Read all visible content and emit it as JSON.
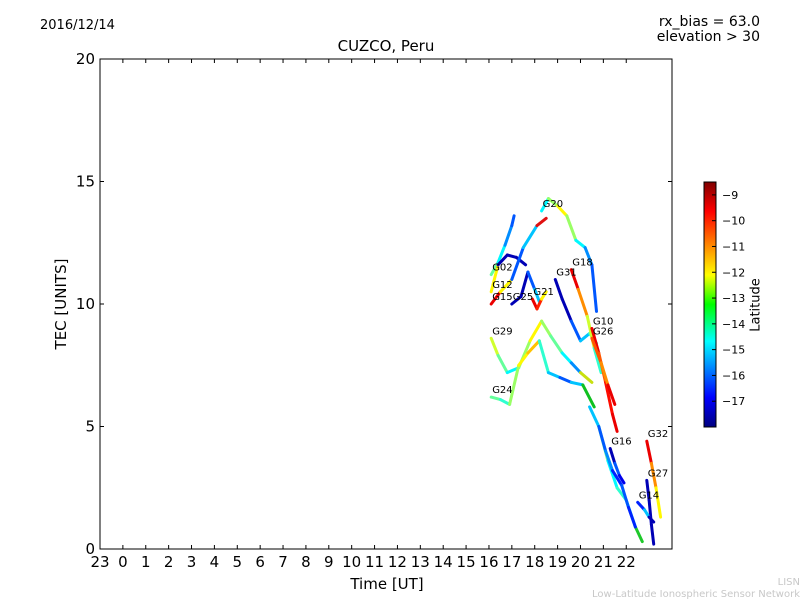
{
  "header": {
    "date": "2016/12/14",
    "rx_bias": "rx_bias = 63.0",
    "elevation": "elevation > 30"
  },
  "footer": {
    "org_short": "LISN",
    "org_long": "Low-Latitude Ionospheric Sensor Network"
  },
  "chart_data": {
    "type": "line",
    "title": "CUZCO, Peru",
    "xlabel": "Time [UT]",
    "ylabel": "TEC [UNITS]",
    "xlim": [
      -1,
      24
    ],
    "ylim": [
      0,
      20
    ],
    "xticks": [
      -1,
      0,
      1,
      2,
      3,
      4,
      5,
      6,
      7,
      8,
      9,
      10,
      11,
      12,
      13,
      14,
      15,
      16,
      17,
      18,
      19,
      20,
      21,
      22
    ],
    "xtick_labels": [
      "23",
      "0",
      "1",
      "2",
      "3",
      "4",
      "5",
      "6",
      "7",
      "8",
      "9",
      "10",
      "11",
      "12",
      "13",
      "14",
      "15",
      "16",
      "17",
      "18",
      "19",
      "20",
      "21",
      "22"
    ],
    "yticks": [
      0,
      5,
      10,
      15,
      20
    ],
    "ytick_labels": [
      "0",
      "5",
      "10",
      "15",
      "20"
    ],
    "grid": false,
    "colorbar": {
      "label": "Latitude",
      "range": [
        -18,
        -8.5
      ],
      "ticks": [
        -9,
        -10,
        -11,
        -12,
        -13,
        -14,
        -15,
        -16,
        -17
      ],
      "tick_labels": [
        "−9",
        "−10",
        "−11",
        "−12",
        "−13",
        "−14",
        "−15",
        "−16",
        "−17"
      ],
      "colormap": "jet"
    },
    "series": [
      {
        "name": "G02",
        "color": "#1ec82a",
        "lat": [
          -13.5,
          -14.5,
          -15.5,
          -16
        ],
        "x": [
          16.1,
          16.4,
          16.7,
          17.0,
          17.1
        ],
        "y": [
          11.2,
          11.7,
          12.4,
          13.2,
          13.6
        ]
      },
      {
        "name": "G12",
        "color": "#0018d8",
        "lat": [
          -12,
          -17.5,
          -17.5,
          -17.5
        ],
        "x": [
          16.1,
          16.4,
          16.8,
          17.2,
          17.6
        ],
        "y": [
          10.5,
          11.6,
          12.0,
          11.9,
          11.6
        ]
      },
      {
        "name": "G15",
        "color": "#e01010",
        "lat": [
          -9.5,
          -12,
          -16,
          -15
        ],
        "x": [
          16.1,
          16.5,
          17.0,
          17.5,
          18.1,
          18.5
        ],
        "y": [
          10.0,
          10.5,
          11.0,
          12.3,
          13.2,
          13.5
        ]
      },
      {
        "name": "G25",
        "color": "#0018d8",
        "lat": [
          -17.5,
          -17.5,
          -16,
          -15
        ],
        "x": [
          17.0,
          17.4,
          17.7,
          18.0,
          18.2
        ],
        "y": [
          10.0,
          10.3,
          11.3,
          10.6,
          10.1
        ]
      },
      {
        "name": "G21",
        "color": "#e01010",
        "lat": [
          -9.5,
          -10,
          -12,
          -16
        ],
        "x": [
          17.9,
          18.1,
          18.3,
          18.5
        ],
        "y": [
          10.2,
          9.8,
          10.2,
          10.5
        ]
      },
      {
        "name": "G20",
        "color": "#15b530",
        "lat": [
          -14.5,
          -13,
          -12,
          -13,
          -14.5,
          -15.5,
          -16
        ],
        "x": [
          18.3,
          18.6,
          19.0,
          19.4,
          19.8,
          20.2,
          20.5,
          20.7
        ],
        "y": [
          13.8,
          14.3,
          14.0,
          13.6,
          12.6,
          12.3,
          11.6,
          9.7
        ]
      },
      {
        "name": "G31",
        "color": "#0018d8",
        "lat": [
          -17.5,
          -17.5,
          -16,
          -15,
          -14
        ],
        "x": [
          18.9,
          19.2,
          19.6,
          20.0,
          20.4,
          20.7
        ],
        "y": [
          11.0,
          10.2,
          9.3,
          8.5,
          8.8,
          8.4
        ]
      },
      {
        "name": "G18",
        "color": "#e01010",
        "lat": [
          -9.5,
          -11,
          -12.5,
          -14
        ],
        "x": [
          19.6,
          19.9,
          20.3,
          20.6,
          20.9
        ],
        "y": [
          11.4,
          10.6,
          9.5,
          8.2,
          7.2
        ]
      },
      {
        "name": "G10",
        "color": "#e01010",
        "lat": [
          -9.5,
          -10.5,
          -9.8,
          -9.5
        ],
        "x": [
          20.5,
          20.8,
          21.1,
          21.4,
          21.6
        ],
        "y": [
          9.0,
          8.0,
          6.8,
          5.5,
          4.8
        ]
      },
      {
        "name": "G26",
        "color": "#ff8800",
        "lat": [
          -10.5,
          -11,
          -9.5
        ],
        "x": [
          20.5,
          20.9,
          21.2,
          21.5
        ],
        "y": [
          8.6,
          7.6,
          6.7,
          5.9
        ]
      },
      {
        "name": "G29",
        "color": "#c8e010",
        "lat": [
          -12.5,
          -13.5,
          -14.5,
          -13,
          -12,
          -13,
          -13.5,
          -14.5,
          -15.5
        ],
        "x": [
          16.1,
          16.4,
          16.8,
          17.3,
          17.8,
          18.3,
          18.7,
          19.2,
          19.6,
          20.0,
          20.5
        ],
        "y": [
          8.6,
          7.9,
          7.2,
          7.4,
          8.5,
          9.3,
          8.7,
          8.0,
          7.6,
          7.2,
          6.8
        ]
      },
      {
        "name": "G24",
        "color": "#10c020",
        "lat": [
          -13.5,
          -14,
          -13,
          -12,
          -11.5,
          -14,
          -15,
          -16,
          -15
        ],
        "x": [
          16.1,
          16.5,
          16.9,
          17.3,
          17.7,
          18.2,
          18.6,
          19.1,
          19.6,
          20.1,
          20.6
        ],
        "y": [
          6.2,
          6.1,
          5.9,
          7.5,
          8.0,
          8.5,
          7.2,
          7.0,
          6.8,
          6.7,
          5.8
        ]
      },
      {
        "name": "G16",
        "color": "#0018d8",
        "lat": [
          -17.5,
          -16,
          -17
        ],
        "x": [
          21.3,
          21.5,
          21.7,
          21.9
        ],
        "y": [
          4.1,
          3.5,
          3.0,
          2.7
        ]
      },
      {
        "name": "G32",
        "color": "#ff3010",
        "lat": [
          -9.5,
          -11,
          -12
        ],
        "x": [
          22.9,
          23.1,
          23.3,
          23.5
        ],
        "y": [
          4.4,
          3.5,
          2.5,
          1.3
        ]
      },
      {
        "name": "G27",
        "color": "#0018d8",
        "lat": [
          -17.5,
          -17.5,
          -17.5
        ],
        "x": [
          22.9,
          23.0,
          23.1,
          23.2
        ],
        "y": [
          2.8,
          2.0,
          1.0,
          0.2
        ]
      },
      {
        "name": "G14",
        "color": "#0018d8",
        "lat": [
          -16.5,
          -15,
          -17.5
        ],
        "x": [
          22.5,
          22.8,
          23.0,
          23.2
        ],
        "y": [
          1.9,
          1.6,
          1.3,
          1.1
        ]
      },
      {
        "name": "",
        "color": "#1ec82a",
        "lat": [
          -15,
          -13.5,
          -14.5,
          -14,
          -14.5
        ],
        "x": [
          20.4,
          20.8,
          21.2,
          21.6,
          22.0,
          22.4,
          22.7
        ],
        "y": [
          5.8,
          5.0,
          3.6,
          2.5,
          2.0,
          0.9,
          0.3
        ]
      },
      {
        "name": "",
        "color": "#25a0e0",
        "lat": [
          -16,
          -15.5,
          -16.5,
          -16,
          -16.5
        ],
        "x": [
          20.8,
          21.1,
          21.4,
          21.8,
          22.1,
          22.4
        ],
        "y": [
          5.0,
          4.0,
          3.2,
          2.6,
          1.7,
          0.9
        ]
      }
    ]
  }
}
